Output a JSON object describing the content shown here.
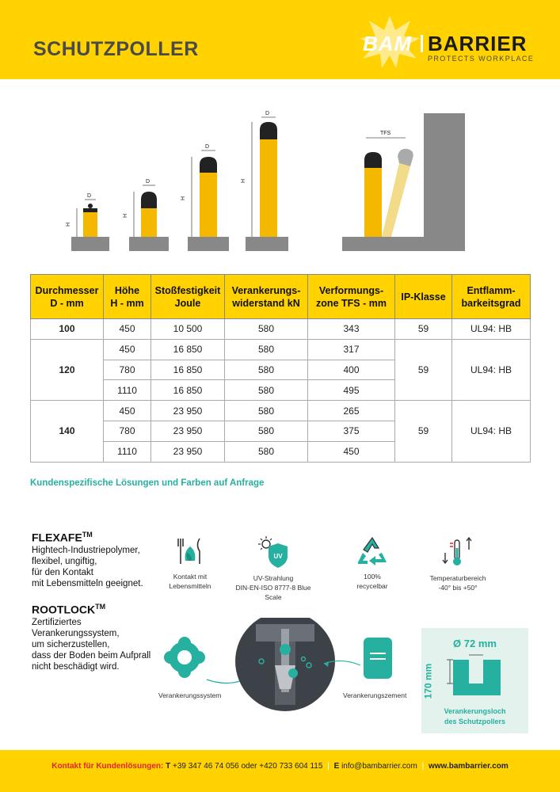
{
  "header": {
    "title": "SCHUTZPOLLER",
    "logo": {
      "bam": "BAM",
      "barrier": "BARRIER",
      "tagline": "PROTECTS WORKPLACE"
    }
  },
  "illustration": {
    "dim_d": "D",
    "dim_h": "H",
    "dim_tfs": "TFS"
  },
  "table": {
    "headers": [
      "Durchmesser\nD - mm",
      "Höhe\nH - mm",
      "Stoßfestigkeit\nJoule",
      "Verankerungs-\nwiderstand  kN",
      "Verformungs-\nzone TFS - mm",
      "IP-Klasse",
      "Entflamm-\nbarkeitsgrad"
    ],
    "groups": [
      {
        "diameter": "100",
        "ip": "59",
        "flame": "UL94: HB",
        "rows": [
          {
            "h": "450",
            "joule": "10 500",
            "kn": "580",
            "tfs": "343"
          }
        ]
      },
      {
        "diameter": "120",
        "ip": "59",
        "flame": "UL94: HB",
        "rows": [
          {
            "h": "450",
            "joule": "16 850",
            "kn": "580",
            "tfs": "317"
          },
          {
            "h": "780",
            "joule": "16 850",
            "kn": "580",
            "tfs": "400"
          },
          {
            "h": "1110",
            "joule": "16 850",
            "kn": "580",
            "tfs": "495"
          }
        ]
      },
      {
        "diameter": "140",
        "ip": "59",
        "flame": "UL94: HB",
        "rows": [
          {
            "h": "450",
            "joule": "23 950",
            "kn": "580",
            "tfs": "265"
          },
          {
            "h": "780",
            "joule": "23 950",
            "kn": "580",
            "tfs": "375"
          },
          {
            "h": "1110",
            "joule": "23 950",
            "kn": "580",
            "tfs": "450"
          }
        ]
      }
    ]
  },
  "custom_note": "Kundenspezifische Lösungen und Farben auf Anfrage",
  "flexafe": {
    "title": "FLEXAFE",
    "tm": "TM",
    "text": "Hightech-Industriepolymer,\nflexibel, ungiftig,\nfür den Kontakt\nmit Lebensmitteln geeignet."
  },
  "rootlock": {
    "title": "ROOTLOCK",
    "tm": "TM",
    "text": "Zertifiziertes\nVerankerungssystem,\num sicherzustellen,\ndass der Boden beim Aufprall\nnicht beschädigt wird."
  },
  "icons": [
    {
      "icon": "food-contact-icon",
      "caption": "Kontakt mit\nLebensmitteln"
    },
    {
      "icon": "uv-shield-icon",
      "badge": "UV",
      "caption": "UV-Strahlung\nDIN-EN-ISO 8777-8 Blue\nScale"
    },
    {
      "icon": "recycle-icon",
      "caption": "100%\nrecycelbar"
    },
    {
      "icon": "thermometer-icon",
      "caption": "Temperaturbereich\n-40° bis +50°"
    }
  ],
  "anchor": {
    "system_caption": "Verankerungssystem",
    "cement_caption": "Verankerungszement"
  },
  "hole": {
    "diameter": "Ø 72 mm",
    "depth": "170 mm",
    "caption": "Verankerungsloch\ndes Schutzpollers"
  },
  "footer": {
    "label": "Kontakt für Kundenlösungen:",
    "phone_prefix": "T",
    "phones": "+39 347 46 74 056 oder +420 733 604 115",
    "email_prefix": "E",
    "email": "info@bambarrier.com",
    "web": "www.bambarrier.com"
  },
  "colors": {
    "brand_yellow": "#ffd200",
    "accent_teal": "#25b0a0",
    "footer_red": "#e3242b"
  }
}
